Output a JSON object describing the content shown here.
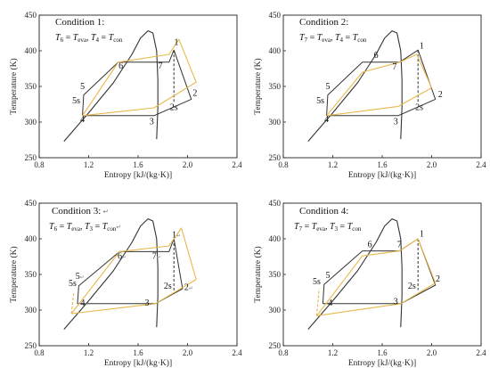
{
  "chart_data": [
    {
      "type": "line",
      "title": "Condition 1:",
      "equation": {
        "a_var": "T",
        "a_sub": "6",
        "a_rhs": "T",
        "a_rsub": "eva",
        "b_var": "T",
        "b_sub": "4",
        "b_rhs": "T",
        "b_rsub": "con"
      },
      "xlabel": "Entropy [kJ/(kg·K)]",
      "ylabel": "Temperature (K)",
      "xlim": [
        0.8,
        2.4
      ],
      "ylim": [
        250,
        450
      ],
      "xticks": [
        0.8,
        1.2,
        1.6,
        2.0,
        2.4
      ],
      "yticks": [
        250,
        300,
        350,
        400,
        450
      ],
      "colors": {
        "dark_cycle": "#333333",
        "yellow_cycle": "#e8b84a",
        "dome": "#333333"
      },
      "dome": [
        [
          1.0,
          273
        ],
        [
          1.2,
          313
        ],
        [
          1.4,
          355
        ],
        [
          1.55,
          395
        ],
        [
          1.62,
          418
        ],
        [
          1.68,
          428
        ],
        [
          1.72,
          425
        ],
        [
          1.75,
          400
        ],
        [
          1.76,
          360
        ],
        [
          1.76,
          320
        ],
        [
          1.75,
          276
        ]
      ],
      "series": [
        {
          "color": "dark",
          "dashed": false,
          "points": [
            [
              1.15,
              309
            ],
            [
              1.73,
              309
            ],
            [
              2.03,
              332
            ],
            [
              1.89,
              401
            ],
            [
              1.85,
              384
            ],
            [
              1.44,
              384
            ],
            [
              1.16,
              338
            ],
            [
              1.15,
              309
            ]
          ]
        },
        {
          "color": "dark",
          "dashed": true,
          "points": [
            [
              1.89,
              401
            ],
            [
              1.89,
              327
            ]
          ]
        },
        {
          "color": "yellow",
          "dashed": false,
          "points": [
            [
              1.15,
              309
            ],
            [
              1.73,
              320
            ],
            [
              2.07,
              356
            ],
            [
              1.93,
              416
            ],
            [
              1.85,
              395
            ],
            [
              1.44,
              384
            ],
            [
              1.15,
              309
            ]
          ]
        }
      ],
      "point_labels": [
        {
          "label": "1",
          "x": 1.91,
          "y": 408
        },
        {
          "label": "2",
          "x": 2.06,
          "y": 337
        },
        {
          "label": "2s",
          "x": 1.89,
          "y": 317
        },
        {
          "label": "3",
          "x": 1.71,
          "y": 297
        },
        {
          "label": "4",
          "x": 1.15,
          "y": 300
        },
        {
          "label": "5",
          "x": 1.15,
          "y": 346
        },
        {
          "label": "5s",
          "x": 1.1,
          "y": 326
        },
        {
          "label": "6",
          "x": 1.46,
          "y": 375
        },
        {
          "label": "7",
          "x": 1.78,
          "y": 375
        }
      ]
    },
    {
      "type": "line",
      "title": "Condition 2:",
      "equation": {
        "a_var": "T",
        "a_sub": "7",
        "a_rhs": "T",
        "a_rsub": "eva",
        "b_var": "T",
        "b_sub": "4",
        "b_rhs": "T",
        "b_rsub": "con"
      },
      "xlabel": "Entropy [kJ/(kg·K)]",
      "ylabel": "Temperature (K)",
      "xlim": [
        0.8,
        2.4
      ],
      "ylim": [
        250,
        450
      ],
      "xticks": [
        0.8,
        1.2,
        1.6,
        2.0,
        2.4
      ],
      "yticks": [
        250,
        300,
        350,
        400,
        450
      ],
      "colors": {
        "dark_cycle": "#333333",
        "yellow_cycle": "#e8b84a",
        "dome": "#333333"
      },
      "dome": [
        [
          1.0,
          273
        ],
        [
          1.2,
          313
        ],
        [
          1.4,
          355
        ],
        [
          1.55,
          395
        ],
        [
          1.62,
          418
        ],
        [
          1.68,
          428
        ],
        [
          1.72,
          425
        ],
        [
          1.75,
          400
        ],
        [
          1.76,
          360
        ],
        [
          1.76,
          320
        ],
        [
          1.75,
          276
        ]
      ],
      "series": [
        {
          "color": "dark",
          "dashed": false,
          "points": [
            [
              1.15,
              309
            ],
            [
              1.73,
              309
            ],
            [
              2.03,
              332
            ],
            [
              1.89,
              401
            ],
            [
              1.74,
              384
            ],
            [
              1.44,
              384
            ],
            [
              1.16,
              338
            ],
            [
              1.15,
              309
            ]
          ]
        },
        {
          "color": "dark",
          "dashed": true,
          "points": [
            [
              1.89,
              401
            ],
            [
              1.89,
              327
            ]
          ]
        },
        {
          "color": "yellow",
          "dashed": false,
          "points": [
            [
              1.15,
              309
            ],
            [
              1.73,
              322
            ],
            [
              2.0,
              348
            ],
            [
              1.88,
              395
            ],
            [
              1.74,
              384
            ],
            [
              1.44,
              370
            ],
            [
              1.15,
              309
            ]
          ]
        }
      ],
      "point_labels": [
        {
          "label": "1",
          "x": 1.92,
          "y": 403
        },
        {
          "label": "2",
          "x": 2.07,
          "y": 335
        },
        {
          "label": "2s",
          "x": 1.9,
          "y": 317
        },
        {
          "label": "3",
          "x": 1.71,
          "y": 297
        },
        {
          "label": "4",
          "x": 1.15,
          "y": 300
        },
        {
          "label": "5",
          "x": 1.16,
          "y": 346
        },
        {
          "label": "5s",
          "x": 1.1,
          "y": 326
        },
        {
          "label": "6",
          "x": 1.55,
          "y": 390
        },
        {
          "label": "7",
          "x": 1.7,
          "y": 374
        }
      ]
    },
    {
      "type": "line",
      "title": "Condition 3:",
      "title_mark": "↵",
      "equation": {
        "a_var": "T",
        "a_sub": "6",
        "a_rhs": "T",
        "a_rsub": "eva",
        "b_var": "T",
        "b_sub": "3",
        "b_rhs": "T",
        "b_rsub": "con",
        "trail": "↵"
      },
      "xlabel": "Entropy [kJ/(kg·K)]",
      "ylabel": "Temperature (K)",
      "xlim": [
        0.8,
        2.4
      ],
      "ylim": [
        250,
        450
      ],
      "xticks": [
        0.8,
        1.2,
        1.6,
        2.0,
        2.4
      ],
      "yticks": [
        250,
        300,
        350,
        400,
        450
      ],
      "colors": {
        "dark_cycle": "#333333",
        "yellow_cycle": "#e8b84a",
        "dome": "#333333"
      },
      "dome": [
        [
          1.0,
          273
        ],
        [
          1.2,
          313
        ],
        [
          1.4,
          355
        ],
        [
          1.55,
          395
        ],
        [
          1.62,
          418
        ],
        [
          1.68,
          428
        ],
        [
          1.72,
          425
        ],
        [
          1.75,
          400
        ],
        [
          1.76,
          360
        ],
        [
          1.76,
          320
        ],
        [
          1.75,
          276
        ]
      ],
      "series": [
        {
          "color": "dark",
          "dashed": false,
          "points": [
            [
              1.11,
              309
            ],
            [
              1.74,
              309
            ],
            [
              1.96,
              330
            ],
            [
              1.89,
              400
            ],
            [
              1.85,
              382
            ],
            [
              1.45,
              382
            ],
            [
              1.12,
              334
            ],
            [
              1.11,
              309
            ]
          ]
        },
        {
          "color": "dark",
          "dashed": true,
          "points": [
            [
              1.89,
              400
            ],
            [
              1.89,
              326
            ]
          ]
        },
        {
          "color": "yellow",
          "dashed": false,
          "points": [
            [
              1.06,
              295
            ],
            [
              1.74,
              309
            ],
            [
              2.07,
              343
            ],
            [
              1.95,
              415
            ],
            [
              1.85,
              390
            ],
            [
              1.45,
              382
            ],
            [
              1.06,
              295
            ]
          ]
        },
        {
          "color": "yellow",
          "dashed": true,
          "points": [
            [
              1.06,
              295
            ],
            [
              1.08,
              325
            ]
          ]
        }
      ],
      "point_labels": [
        {
          "label": "1",
          "x": 1.91,
          "y": 402,
          "mark": "↵"
        },
        {
          "label": "2",
          "x": 2.01,
          "y": 328,
          "mark": "↵"
        },
        {
          "label": "2s",
          "x": 1.84,
          "y": 330
        },
        {
          "label": "3",
          "x": 1.69,
          "y": 306,
          "mark": "↵"
        },
        {
          "label": "4",
          "x": 1.17,
          "y": 306,
          "mark": "↵"
        },
        {
          "label": "5",
          "x": 1.13,
          "y": 344,
          "mark": "↵"
        },
        {
          "label": "5s",
          "x": 1.07,
          "y": 334
        },
        {
          "label": "6",
          "x": 1.47,
          "y": 372,
          "mark": "↵"
        },
        {
          "label": "7",
          "x": 1.75,
          "y": 372,
          "mark": "↵"
        }
      ]
    },
    {
      "type": "line",
      "title": "Condition 4:",
      "equation": {
        "a_var": "T",
        "a_sub": "7",
        "a_rhs": "T",
        "a_rsub": "eva",
        "b_var": "T",
        "b_sub": "3",
        "b_rhs": "T",
        "b_rsub": "con"
      },
      "xlabel": "Entropy [kJ/(kg·K)]",
      "ylabel": "Temperature (K)",
      "xlim": [
        0.8,
        2.4
      ],
      "ylim": [
        250,
        450
      ],
      "xticks": [
        0.8,
        1.2,
        1.6,
        2.0,
        2.4
      ],
      "yticks": [
        250,
        300,
        350,
        400,
        450
      ],
      "colors": {
        "dark_cycle": "#333333",
        "yellow_cycle": "#e8b84a",
        "dome": "#333333"
      },
      "dome": [
        [
          1.0,
          273
        ],
        [
          1.2,
          313
        ],
        [
          1.4,
          355
        ],
        [
          1.55,
          395
        ],
        [
          1.62,
          418
        ],
        [
          1.68,
          428
        ],
        [
          1.72,
          425
        ],
        [
          1.75,
          400
        ],
        [
          1.76,
          360
        ],
        [
          1.76,
          320
        ],
        [
          1.75,
          276
        ]
      ],
      "series": [
        {
          "color": "dark",
          "dashed": false,
          "points": [
            [
              1.12,
              309
            ],
            [
              1.75,
              309
            ],
            [
              2.03,
              335
            ],
            [
              1.89,
              400
            ],
            [
              1.74,
              383
            ],
            [
              1.44,
              383
            ],
            [
              1.13,
              336
            ],
            [
              1.12,
              309
            ]
          ]
        },
        {
          "color": "dark",
          "dashed": true,
          "points": [
            [
              1.89,
              400
            ],
            [
              1.89,
              328
            ]
          ]
        },
        {
          "color": "yellow",
          "dashed": false,
          "points": [
            [
              1.07,
              292
            ],
            [
              1.75,
              309
            ],
            [
              2.03,
              338
            ],
            [
              1.89,
              400
            ],
            [
              1.74,
              383
            ],
            [
              1.44,
              376
            ],
            [
              1.07,
              292
            ]
          ]
        },
        {
          "color": "yellow",
          "dashed": true,
          "points": [
            [
              1.07,
              292
            ],
            [
              1.09,
              330
            ]
          ]
        }
      ],
      "point_labels": [
        {
          "label": "1",
          "x": 1.92,
          "y": 403
        },
        {
          "label": "2",
          "x": 2.05,
          "y": 340
        },
        {
          "label": "2s",
          "x": 1.84,
          "y": 330
        },
        {
          "label": "3",
          "x": 1.71,
          "y": 308
        },
        {
          "label": "4",
          "x": 1.18,
          "y": 306
        },
        {
          "label": "5",
          "x": 1.16,
          "y": 345
        },
        {
          "label": "5s",
          "x": 1.07,
          "y": 336
        },
        {
          "label": "6",
          "x": 1.5,
          "y": 388
        },
        {
          "label": "7",
          "x": 1.74,
          "y": 388
        }
      ]
    }
  ]
}
